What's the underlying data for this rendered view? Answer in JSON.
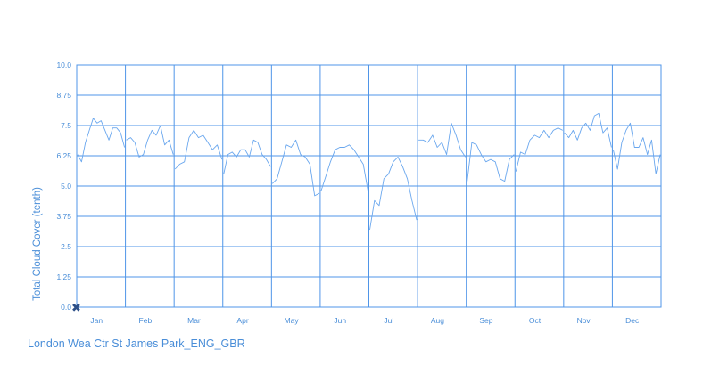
{
  "chart_data": {
    "type": "line",
    "title": "",
    "xlabel": "",
    "ylabel": "Total Cloud Cover (tenth)",
    "ylim": [
      0,
      10
    ],
    "yticks": [
      "0.0",
      "1.25",
      "2.5",
      "3.75",
      "5.0",
      "6.25",
      "7.5",
      "8.75",
      "10.0"
    ],
    "months": [
      "Jan",
      "Feb",
      "Mar",
      "Apr",
      "May",
      "Jun",
      "Jul",
      "Aug",
      "Sep",
      "Oct",
      "Nov",
      "Dec"
    ],
    "grid": true,
    "caption": "London Wea Ctr St James Park_ENG_GBR",
    "series": [
      {
        "color": "#6aa7ee",
        "segments": [
          {
            "month": "Jan",
            "values": [
              6.3,
              6.0,
              6.8,
              7.3,
              7.8,
              7.6,
              7.7,
              7.3,
              6.9,
              7.4,
              7.4,
              7.2,
              6.6
            ]
          },
          {
            "month": "Feb",
            "values": [
              6.9,
              7.0,
              6.8,
              6.2,
              6.3,
              6.9,
              7.3,
              7.1,
              7.5,
              6.7,
              6.9,
              6.3
            ]
          },
          {
            "month": "Mar",
            "values": [
              5.7,
              5.9,
              6.0,
              7.0,
              7.3,
              7.0,
              7.1,
              6.8,
              6.5,
              6.7,
              6.1
            ]
          },
          {
            "month": "Apr",
            "values": [
              5.5,
              6.3,
              6.4,
              6.2,
              6.5,
              6.5,
              6.2,
              6.9,
              6.8,
              6.3,
              6.1,
              5.8
            ]
          },
          {
            "month": "May",
            "values": [
              5.1,
              5.3,
              6.0,
              6.7,
              6.6,
              6.9,
              6.3,
              6.2,
              5.9,
              4.6,
              4.7
            ]
          },
          {
            "month": "Jun",
            "values": [
              4.8,
              5.4,
              6.0,
              6.5,
              6.6,
              6.6,
              6.7,
              6.5,
              6.2,
              5.9,
              4.8
            ]
          },
          {
            "month": "Jul",
            "values": [
              3.2,
              4.4,
              4.2,
              5.3,
              5.5,
              6.0,
              6.2,
              5.8,
              5.3,
              4.4,
              3.6
            ]
          },
          {
            "month": "Aug",
            "values": [
              6.9,
              6.9,
              6.8,
              7.1,
              6.6,
              6.8,
              6.3,
              7.6,
              7.1,
              6.5,
              6.2
            ]
          },
          {
            "month": "Sep",
            "values": [
              5.2,
              6.8,
              6.7,
              6.3,
              6.0,
              6.1,
              6.0,
              5.3,
              5.2,
              6.1,
              6.3
            ]
          },
          {
            "month": "Oct",
            "values": [
              5.6,
              6.4,
              6.3,
              6.9,
              7.1,
              7.0,
              7.3,
              7.0,
              7.3,
              7.4,
              7.3
            ]
          },
          {
            "month": "Nov",
            "values": [
              7.2,
              7.0,
              7.3,
              6.9,
              7.4,
              7.6,
              7.3,
              7.9,
              8.0,
              7.2,
              7.4,
              6.6
            ]
          },
          {
            "month": "Dec",
            "values": [
              6.5,
              5.7,
              6.8,
              7.3,
              7.6,
              6.6,
              6.6,
              7.0,
              6.3,
              6.9,
              5.5,
              6.3
            ]
          }
        ]
      }
    ]
  }
}
